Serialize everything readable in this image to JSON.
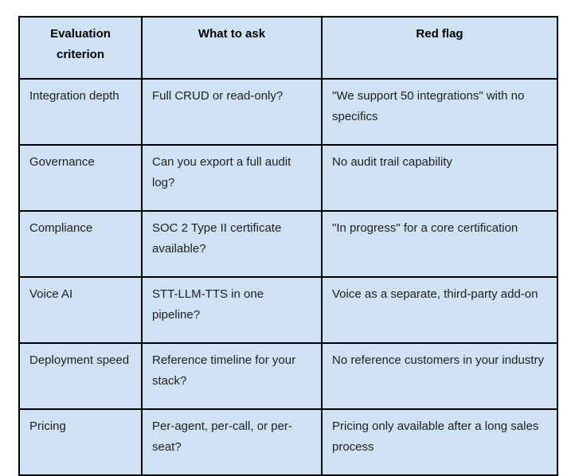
{
  "table": {
    "headers": {
      "criterion": "Evaluation criterion",
      "ask": "What to ask",
      "red_flag": "Red flag"
    },
    "rows": [
      {
        "criterion": "Integration depth",
        "ask": "Full CRUD or read-only?",
        "red_flag": "\"We support 50 integrations\" with no specifics"
      },
      {
        "criterion": "Governance",
        "ask": "Can you export a full audit log?",
        "red_flag": "No audit trail capability"
      },
      {
        "criterion": "Compliance",
        "ask": "SOC 2 Type II certificate available?",
        "red_flag": "\"In progress\" for a core certification"
      },
      {
        "criterion": "Voice AI",
        "ask": "STT-LLM-TTS in one pipeline?",
        "red_flag": "Voice as a separate, third-party add-on"
      },
      {
        "criterion": "Deployment speed",
        "ask": "Reference timeline for your stack?",
        "red_flag": "No reference customers in your industry"
      },
      {
        "criterion": "Pricing",
        "ask": "Per-agent, per-call, or per-seat?",
        "red_flag": "Pricing only available after a long sales process"
      }
    ],
    "colors": {
      "cell_background": "#cfe2f3",
      "border": "#000000",
      "body_text": "#1f1f1f",
      "header_text": "#000000"
    }
  }
}
